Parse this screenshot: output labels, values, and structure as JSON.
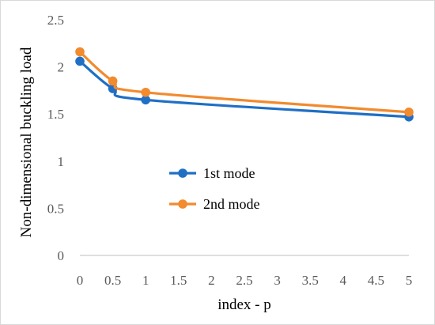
{
  "chart_data": {
    "type": "line",
    "title": "",
    "xlabel": "index - p",
    "ylabel": "Non-dimensional buckling load",
    "xlim": [
      0,
      5
    ],
    "ylim": [
      0,
      2.5
    ],
    "x_ticks": [
      "0",
      "0.5",
      "1",
      "1.5",
      "2",
      "2.5",
      "3",
      "3.5",
      "4",
      "4.5",
      "5"
    ],
    "y_ticks": [
      "0",
      "0.5",
      "1",
      "1.5",
      "2",
      "2.5"
    ],
    "grid": false,
    "smooth": true,
    "legend_position": "center-left",
    "series": [
      {
        "name": "1st mode",
        "color": "#1f6fc5",
        "x": [
          0,
          0.5,
          1,
          5
        ],
        "values": [
          2.06,
          1.77,
          1.65,
          1.47
        ]
      },
      {
        "name": "2nd mode",
        "color": "#f28a2e",
        "x": [
          0,
          0.5,
          1,
          5
        ],
        "values": [
          2.16,
          1.85,
          1.73,
          1.52
        ]
      }
    ]
  }
}
